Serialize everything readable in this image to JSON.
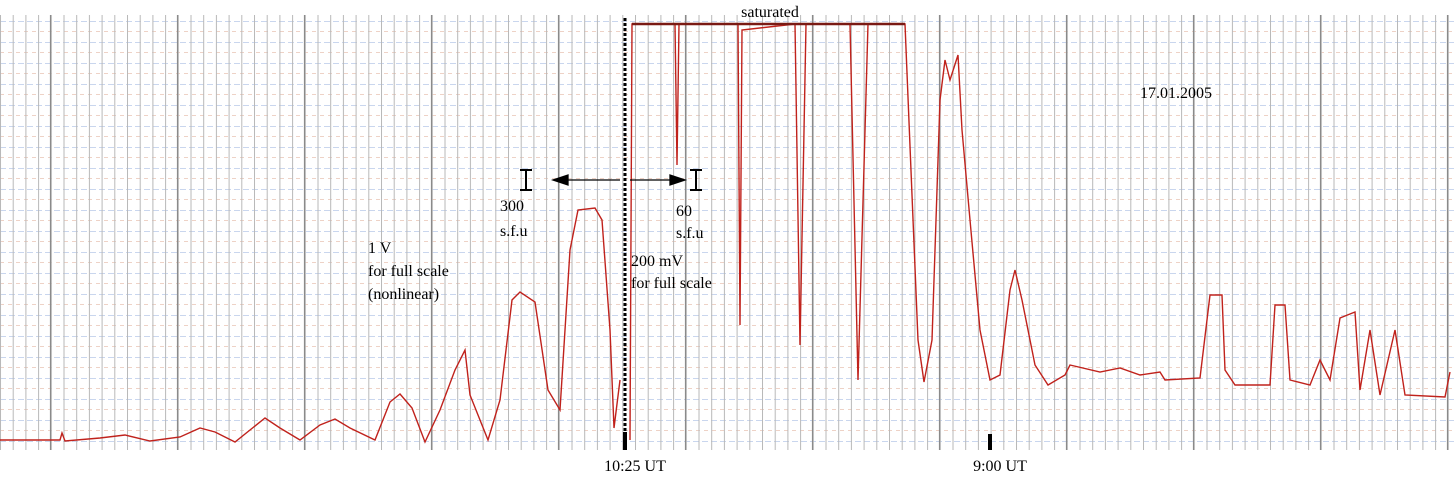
{
  "annotations": {
    "saturated": "saturated",
    "date": "17.01.2005",
    "left_scale": {
      "value": "300",
      "unit": "s.f.u"
    },
    "right_scale": {
      "value": "60",
      "unit": "s.f.u"
    },
    "left_note": [
      "1 V",
      "for full scale",
      "(nonlinear)"
    ],
    "right_note": [
      "200 mV",
      "for full scale"
    ]
  },
  "time_marks": [
    "10:25 UT",
    "9:00 UT"
  ]
}
